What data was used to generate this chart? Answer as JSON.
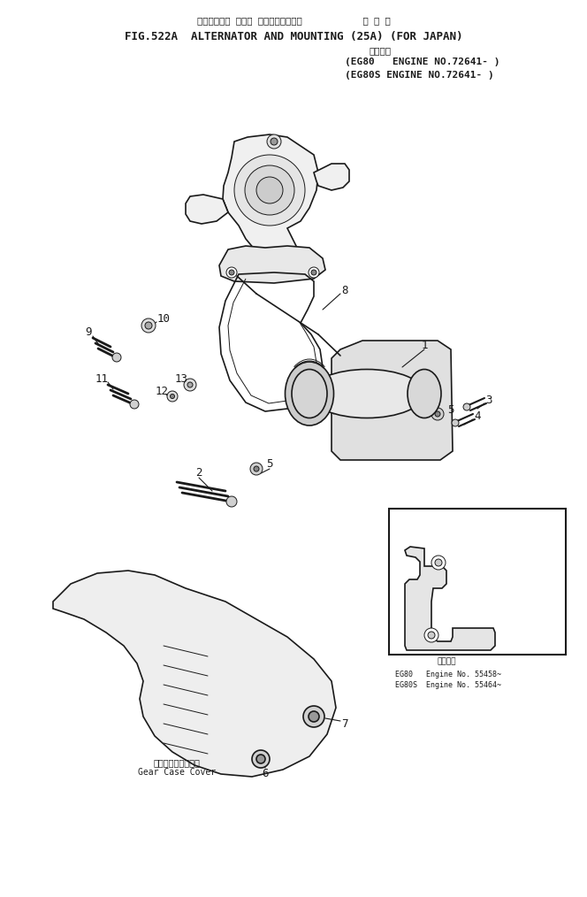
{
  "title_line1": "オルタネータ および マウンティング。           国 内 向",
  "title_line2": "FIG.522A  ALTERNATOR AND MOUNTING (25A) (FOR JAPAN)",
  "inset_text1": "適用号機",
  "inset_text2": "EG80   Engine No. 55458~",
  "inset_text3": "EG80S  Engine No. 55464~",
  "gear_case_label1": "ギヤーケースカバー",
  "gear_case_label2": "Gear Case Cover",
  "bg_color": "#ffffff",
  "line_color": "#1a1a1a"
}
